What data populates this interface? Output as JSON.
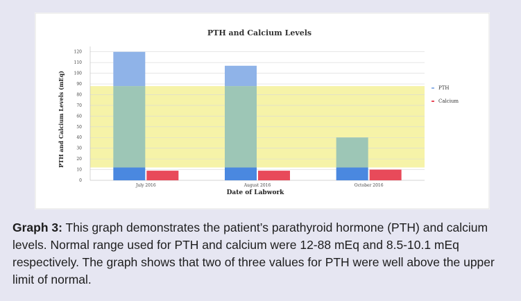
{
  "chart_data": {
    "type": "bar",
    "title": "PTH and Calcium Levels",
    "xlabel": "Date of Labwork",
    "ylabel": "PTH and Calcium Levels (mEq)",
    "categories": [
      "July 2016",
      "August 2016",
      "October 2016"
    ],
    "series": [
      {
        "name": "PTH",
        "values": [
          120,
          107,
          40
        ],
        "color": "#8fb3e8"
      },
      {
        "name": "Calcium",
        "values": [
          9,
          9,
          10
        ],
        "color": "#e84a5a"
      }
    ],
    "yticks": [
      "0",
      "10",
      "20",
      "30",
      "40",
      "50",
      "60",
      "70",
      "80",
      "90",
      "100",
      "110",
      "120"
    ],
    "ylim": [
      0,
      125
    ],
    "normal_band": [
      12,
      88
    ],
    "band_color": "#f6f3a8",
    "grid": true,
    "legend_position": "right"
  },
  "caption": {
    "label": "Graph 3:",
    "text": " This graph demonstrates the patient’s parathyroid hormone (PTH) and calcium levels. Normal range used for PTH and calcium were 12-88 mEq and 8.5-10.1 mEq respectively. The graph shows that two of three values for PTH were well above the upper limit of normal."
  },
  "colors": {
    "background": "#e6e6f2",
    "panel": "#ffffff",
    "teal_overlap": "#9dc6b6",
    "low_blue": "#4a88e0"
  }
}
